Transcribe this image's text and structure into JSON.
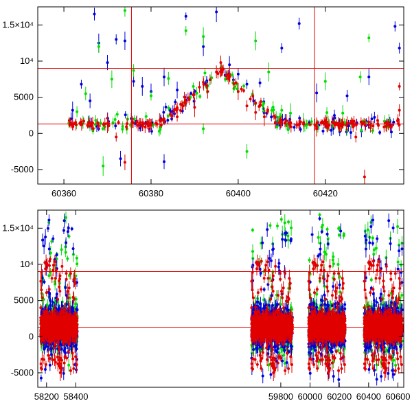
{
  "chart_data": [
    {
      "type": "scatter",
      "title": "",
      "xlabel": "",
      "ylabel": "",
      "xlim": [
        60354,
        60438
      ],
      "ylim": [
        -7000,
        17500
      ],
      "x_ticks": [
        60360,
        60380,
        60400,
        60420
      ],
      "x_tick_labels": [
        "60360",
        "60380",
        "60400",
        "60420"
      ],
      "y_ticks": [
        -5000,
        0,
        5000,
        10000,
        15000
      ],
      "y_tick_labels": [
        "-5000",
        "0",
        "5000",
        "10⁴",
        "1.5×10⁴"
      ],
      "grid": false,
      "reference_lines": {
        "horizontal": [
          9000,
          1300
        ],
        "vertical": [
          60375.5,
          60417.5
        ]
      },
      "series": [
        {
          "color": "#0000dd",
          "points": [
            [
              60362,
              3200
            ],
            [
              60364,
              6800
            ],
            [
              60366,
              4500
            ],
            [
              60367,
              16500
            ],
            [
              60368,
              12500
            ],
            [
              60370,
              9800
            ],
            [
              60372,
              13000
            ],
            [
              60374,
              12800
            ],
            [
              60376,
              7200
            ],
            [
              60378,
              6500
            ],
            [
              60380,
              5800
            ],
            [
              60383,
              7800
            ],
            [
              60386,
              6000
            ],
            [
              60388,
              16200
            ],
            [
              60392,
              12000
            ],
            [
              60395,
              16800
            ],
            [
              60398,
              9500
            ],
            [
              60400,
              8200
            ],
            [
              60402,
              6800
            ],
            [
              60405,
              7000
            ],
            [
              60410,
              11800
            ],
            [
              60414,
              15200
            ],
            [
              60418,
              5600
            ],
            [
              60425,
              5200
            ],
            [
              60430,
              7800
            ],
            [
              60436,
              14800
            ],
            [
              60437,
              11800
            ],
            [
              60373,
              -3500
            ],
            [
              60383,
              -3900
            ]
          ]
        },
        {
          "color": "#00dd00",
          "points": [
            [
              60363,
              3000
            ],
            [
              60365,
              5500
            ],
            [
              60368,
              12000
            ],
            [
              60369,
              -4500
            ],
            [
              60371,
              7500
            ],
            [
              60374,
              17000
            ],
            [
              60376,
              8700
            ],
            [
              60380,
              5200
            ],
            [
              60384,
              7600
            ],
            [
              60388,
              14200
            ],
            [
              60392,
              13400
            ],
            [
              60396,
              9000
            ],
            [
              60399,
              6200
            ],
            [
              60402,
              -2500
            ],
            [
              60404,
              12800
            ],
            [
              60407,
              8500
            ],
            [
              60410,
              3200
            ],
            [
              60415,
              1500
            ],
            [
              60420,
              7200
            ],
            [
              60424,
              2800
            ],
            [
              60428,
              7800
            ],
            [
              60430,
              13200
            ],
            [
              60392,
              650
            ],
            [
              60412,
              2800
            ]
          ]
        },
        {
          "color": "#e00000",
          "points": [
            [
              60362,
              1200
            ],
            [
              60366,
              1500
            ],
            [
              60370,
              1400
            ],
            [
              60372,
              -500
            ],
            [
              60374,
              -4000
            ],
            [
              60378,
              1000
            ],
            [
              60382,
              1800
            ],
            [
              60386,
              2300
            ],
            [
              60390,
              3600
            ],
            [
              60393,
              5800
            ],
            [
              60395,
              8500
            ],
            [
              60396,
              9800
            ],
            [
              60398,
              8200
            ],
            [
              60400,
              5800
            ],
            [
              60402,
              3800
            ],
            [
              60404,
              2900
            ],
            [
              60406,
              2300
            ],
            [
              60410,
              1600
            ],
            [
              60414,
              1200
            ],
            [
              60418,
              900
            ],
            [
              60420,
              1800
            ],
            [
              60422,
              1500
            ],
            [
              60425,
              1400
            ],
            [
              60427,
              -500
            ],
            [
              60429,
              -6000
            ],
            [
              60432,
              1800
            ],
            [
              60435,
              900
            ],
            [
              60437,
              3200
            ],
            [
              60437,
              6500
            ]
          ]
        }
      ]
    },
    {
      "type": "scatter",
      "title": "",
      "xlabel": "",
      "ylabel": "",
      "xlim": [
        58140,
        60640
      ],
      "ylim": [
        -7000,
        17500
      ],
      "x_ticks": [
        58200,
        58400,
        59800,
        60000,
        60200,
        60400,
        60600
      ],
      "x_tick_labels": [
        "58200",
        "58400",
        "59800",
        "60000",
        "60200",
        "60400",
        "60600"
      ],
      "y_ticks": [
        -5000,
        0,
        5000,
        10000,
        15000
      ],
      "y_tick_labels": [
        "-5000",
        "0",
        "5000",
        "10⁴",
        "1.5×10⁴"
      ],
      "grid": false,
      "reference_lines": {
        "horizontal": [
          9000,
          1300
        ],
        "vertical": []
      },
      "season_ranges": [
        [
          58160,
          58410
        ],
        [
          59600,
          59880
        ],
        [
          59990,
          60240
        ],
        [
          60370,
          60630
        ]
      ],
      "series": [
        {
          "color": "#00dd00",
          "spread": [
            -4000,
            17000
          ]
        },
        {
          "color": "#0000dd",
          "spread": [
            -6000,
            16500
          ]
        },
        {
          "color": "#e00000",
          "spread": [
            -6500,
            11000
          ]
        }
      ]
    }
  ]
}
